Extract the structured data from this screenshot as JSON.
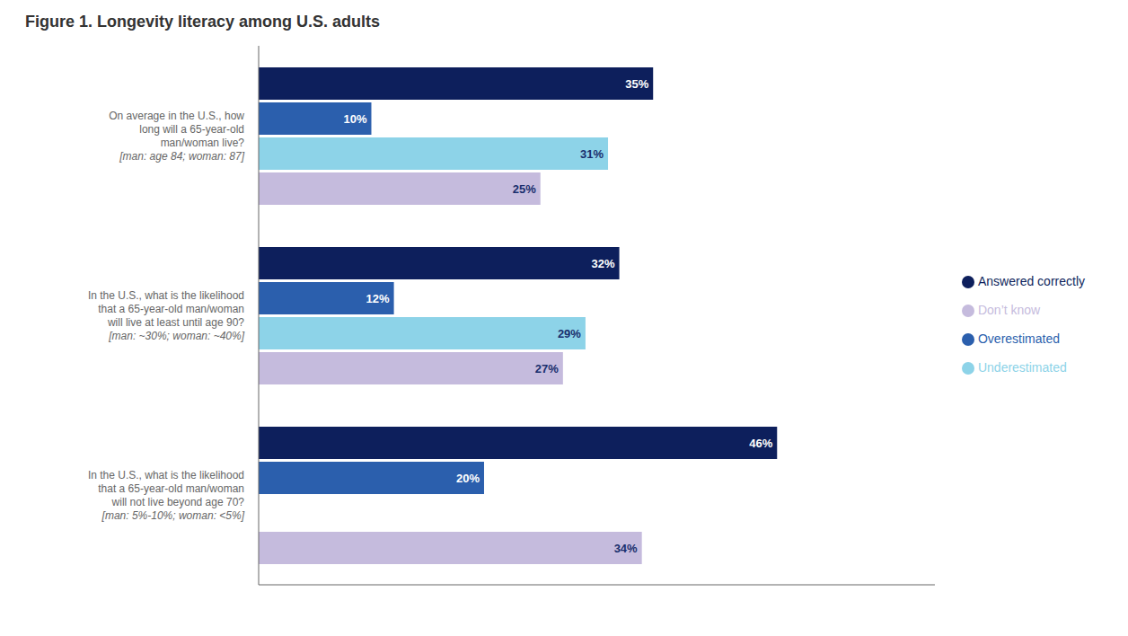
{
  "chart_data": {
    "type": "bar",
    "orientation": "horizontal",
    "title": "Figure 1. Longevity literacy among U.S. adults",
    "categories": [
      "On average in the U.S., how\nlong will a 65-year-old\nman/woman live?\n[man: age 84; woman: 87]",
      "In the U.S., what is the likelihood\nthat a 65-year-old man/woman\nwill live at least until age 90?\n[man: ~30%; woman: ~40%]",
      "In the U.S., what is the likelihood\nthat a 65-year-old man/woman\nwill not live beyond age 70?\n[man: 5%-10%; woman: <5%]"
    ],
    "series": [
      {
        "name": "Answered correctly",
        "color": "#0d1f5c",
        "values": [
          35,
          32,
          46
        ],
        "value_labels": [
          "35%",
          "32%",
          "46%"
        ]
      },
      {
        "name": "Overestimated",
        "color": "#2b5fad",
        "values": [
          10,
          12,
          20
        ],
        "value_labels": [
          "10%",
          "12%",
          "20%"
        ]
      },
      {
        "name": "Underestimated",
        "color": "#8dd3e8",
        "values": [
          31,
          29,
          null
        ],
        "value_labels": [
          "31%",
          "29%",
          null
        ]
      },
      {
        "name": "Don’t know",
        "color": "#c5bbdd",
        "values": [
          25,
          27,
          34
        ],
        "value_labels": [
          "25%",
          "27%",
          "34%"
        ]
      }
    ],
    "xlim": [
      0,
      60
    ],
    "tick_labels": "y",
    "grid": false,
    "legend": "right",
    "data_labels": true
  }
}
